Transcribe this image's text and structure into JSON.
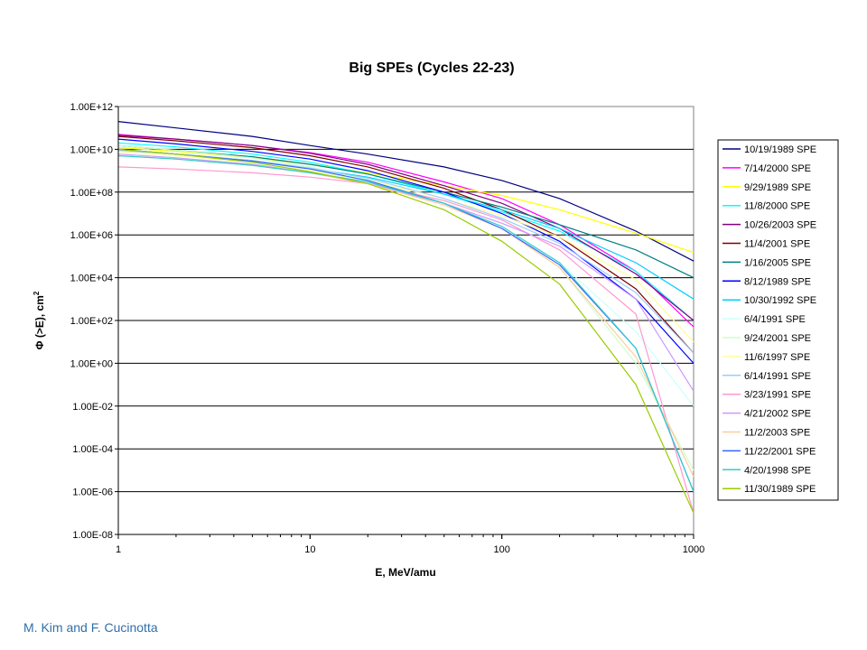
{
  "credit": "M. Kim and F. Cucinotta",
  "chart_data": {
    "type": "line",
    "title": "Big SPEs (Cycles 22-23)",
    "xlabel": "E, MeV/amu",
    "ylabel": "Φ (>E), cm",
    "ylabel_sup": "2",
    "x_scale": "log",
    "y_scale": "log",
    "xlim": [
      1,
      1000
    ],
    "ylim": [
      1e-08,
      1000000000000.0
    ],
    "x_ticks": [
      "1",
      "10",
      "100",
      "1000"
    ],
    "y_ticks": [
      "1.00E-08",
      "1.00E-06",
      "1.00E-04",
      "1.00E-02",
      "1.00E+00",
      "1.00E+02",
      "1.00E+04",
      "1.00E+06",
      "1.00E+08",
      "1.00E+10",
      "1.00E+12"
    ],
    "grid": "horizontal major",
    "legend_position": "right",
    "x": [
      1,
      2,
      5,
      10,
      20,
      50,
      100,
      200,
      500,
      1000
    ],
    "series": [
      {
        "name": "10/19/1989 SPE",
        "color": "#000080",
        "values": [
          200000000000.0,
          100000000000.0,
          40000000000.0,
          15000000000.0,
          6000000000.0,
          1500000000.0,
          350000000.0,
          50000000.0,
          1500000.0,
          60000.0
        ]
      },
      {
        "name": "7/14/2000 SPE",
        "color": "#ff00ff",
        "values": [
          50000000000.0,
          30000000000.0,
          15000000000.0,
          7000000000.0,
          2500000000.0,
          300000000.0,
          50000000.0,
          3000000.0,
          20000.0,
          50.0
        ]
      },
      {
        "name": "9/29/1989 SPE",
        "color": "#ffff00",
        "values": [
          12000000000.0,
          8000000000.0,
          4000000000.0,
          2000000000.0,
          800000000.0,
          200000000.0,
          70000000.0,
          15000000.0,
          1200000.0,
          150000.0
        ]
      },
      {
        "name": "11/8/2000 SPE",
        "color": "#00ffff",
        "values": [
          20000000000.0,
          13000000000.0,
          6000000000.0,
          2500000000.0,
          700000000.0,
          80000000.0,
          12000000.0,
          1500000.0,
          20000.0,
          100.0
        ]
      },
      {
        "name": "10/26/2003 SPE",
        "color": "#800080",
        "values": [
          45000000000.0,
          30000000000.0,
          15000000000.0,
          6500000000.0,
          2000000000.0,
          200000000.0,
          30000000.0,
          2000000.0,
          15000.0,
          100.0
        ]
      },
      {
        "name": "11/4/2001 SPE",
        "color": "#800000",
        "values": [
          40000000000.0,
          25000000000.0,
          12000000000.0,
          5000000000.0,
          1500000000.0,
          150000000.0,
          15000000.0,
          800000.0,
          3000.0,
          3.0
        ]
      },
      {
        "name": "1/16/2005 SPE",
        "color": "#008080",
        "values": [
          15000000000.0,
          9000000000.0,
          4500000000.0,
          2000000000.0,
          700000000.0,
          100000000.0,
          20000000.0,
          3000000.0,
          200000.0,
          10000.0
        ]
      },
      {
        "name": "8/12/1989 SPE",
        "color": "#0000ff",
        "values": [
          30000000000.0,
          18000000000.0,
          8000000000.0,
          3500000000.0,
          1000000000.0,
          100000000.0,
          10000000.0,
          500000.0,
          1000.0,
          1.0
        ]
      },
      {
        "name": "10/30/1992 SPE",
        "color": "#00ccff",
        "values": [
          10000000000.0,
          6000000000.0,
          3000000000.0,
          1300000000.0,
          500000000.0,
          80000000.0,
          15000000.0,
          2000000.0,
          50000.0,
          1000.0
        ]
      },
      {
        "name": "6/4/1991 SPE",
        "color": "#ccffff",
        "values": [
          6000000000.0,
          4000000000.0,
          2000000000.0,
          900000000.0,
          300000000.0,
          30000000.0,
          2000000.0,
          50000.0,
          30.0,
          0.01
        ]
      },
      {
        "name": "9/24/2001  SPE",
        "color": "#ccffcc",
        "values": [
          15000000000.0,
          9000000000.0,
          4000000000.0,
          1500000000.0,
          400000000.0,
          30000000.0,
          2000000.0,
          30000.0,
          1.0,
          1e-05
        ]
      },
      {
        "name": "11/6/1997 SPE",
        "color": "#ffff99",
        "values": [
          8000000000.0,
          5000000000.0,
          2500000000.0,
          1000000000.0,
          350000000.0,
          50000000.0,
          8000000.0,
          800000.0,
          8000.0,
          10.0
        ]
      },
      {
        "name": "6/14/1991 SPE",
        "color": "#99ccff",
        "values": [
          9000000000.0,
          6000000000.0,
          3000000000.0,
          1300000000.0,
          450000000.0,
          50000000.0,
          6000000.0,
          400000.0,
          2000.0,
          3.0
        ]
      },
      {
        "name": "3/23/1991 SPE",
        "color": "#ff99cc",
        "values": [
          1500000000.0,
          1200000000.0,
          800000000.0,
          500000000.0,
          250000000.0,
          40000000.0,
          5000000.0,
          200000.0,
          200.0,
          1e-07
        ]
      },
      {
        "name": "4/21/2002 SPE",
        "color": "#cc99ff",
        "values": [
          6000000000.0,
          4000000000.0,
          2000000000.0,
          800000000.0,
          250000000.0,
          30000000.0,
          3500000.0,
          300000.0,
          1000.0,
          0.05
        ]
      },
      {
        "name": "11/2/2003 SPE",
        "color": "#ffcc99",
        "values": [
          5000000000.0,
          3500000000.0,
          1800000000.0,
          800000000.0,
          250000000.0,
          25000000.0,
          2000000.0,
          30000.0,
          2.0,
          5e-06
        ]
      },
      {
        "name": "11/22/2001 SPE",
        "color": "#3366ff",
        "values": [
          10000000000.0,
          6000000000.0,
          2800000000.0,
          1200000000.0,
          350000000.0,
          30000000.0,
          2000000.0,
          40000.0,
          5.0,
          1e-06
        ]
      },
      {
        "name": "4/20/1998 SPE",
        "color": "#33cccc",
        "values": [
          5000000000.0,
          3500000000.0,
          1800000000.0,
          800000000.0,
          300000000.0,
          30000000.0,
          2500000.0,
          50000.0,
          5.0,
          1e-06
        ]
      },
      {
        "name": "11/30/1989 SPE",
        "color": "#99cc00",
        "values": [
          10000000000.0,
          6000000000.0,
          2500000000.0,
          900000000.0,
          250000000.0,
          15000000.0,
          500000.0,
          5000.0,
          0.1,
          1e-07
        ]
      }
    ]
  }
}
